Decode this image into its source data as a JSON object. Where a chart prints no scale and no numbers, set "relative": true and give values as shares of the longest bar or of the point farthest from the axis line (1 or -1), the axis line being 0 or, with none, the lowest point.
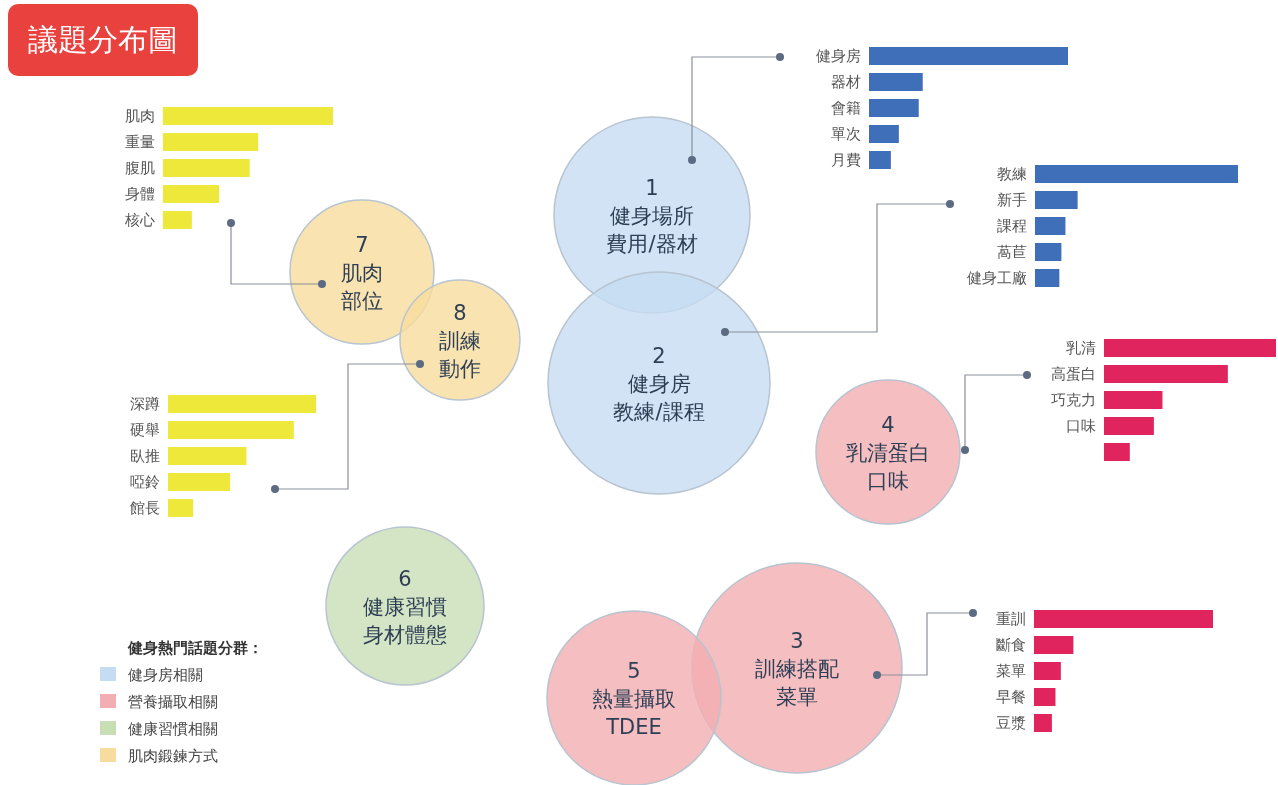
{
  "chart_data": [
    {
      "type": "other",
      "title": "議題分布圖",
      "legend_title": "健身熱門話題分群：",
      "legend": "bottom left",
      "series": [
        {
          "name": "健身房相關",
          "color": "#c5dcf2"
        },
        {
          "name": "營養攝取相關",
          "color": "#f2aeb2"
        },
        {
          "name": "健康習慣相關",
          "color": "#c8dfb5"
        },
        {
          "name": "肌肉鍛鍊方式",
          "color": "#f8dc9e"
        }
      ],
      "annotations": [
        "1",
        "健身場所",
        "費用/器材",
        "2",
        "健身房",
        "教練/課程",
        "3",
        "訓練搭配",
        "菜單",
        "4",
        "乳清蛋白",
        "口味",
        "5",
        "熱量攝取",
        "TDEE",
        "6",
        "健康習慣",
        "身材體態",
        "7",
        "肌肉",
        "部位",
        "8",
        "訓練",
        "動作"
      ]
    },
    {
      "type": "bar",
      "orientation": "horizontal",
      "relative": true,
      "color": "#3f6fb8",
      "categories": [
        "健身房",
        "器材",
        "會籍",
        "單次",
        "月費"
      ],
      "values": [
        1,
        0.27,
        0.25,
        0.15,
        0.11
      ]
    },
    {
      "type": "bar",
      "orientation": "horizontal",
      "relative": true,
      "color": "#3f6fb8",
      "categories": [
        "教練",
        "新手",
        "課程",
        "萵苣",
        "健身工廠"
      ],
      "values": [
        1,
        0.21,
        0.15,
        0.13,
        0.12
      ]
    },
    {
      "type": "bar",
      "orientation": "horizontal",
      "relative": true,
      "color": "#e0245e",
      "categories": [
        "乳清",
        "高蛋白",
        "巧克力",
        "口味",
        null
      ],
      "values": [
        1,
        0.72,
        0.34,
        0.29,
        0.15
      ]
    },
    {
      "type": "bar",
      "orientation": "horizontal",
      "relative": true,
      "color": "#e0245e",
      "categories": [
        "重訓",
        "斷食",
        "菜單",
        "早餐",
        "豆漿"
      ],
      "values": [
        1,
        0.22,
        0.15,
        0.12,
        0.1
      ]
    },
    {
      "type": "bar",
      "orientation": "horizontal",
      "relative": true,
      "color": "#eee83a",
      "categories": [
        "肌肉",
        "重量",
        "腹肌",
        "身體",
        "核心"
      ],
      "values": [
        1,
        0.56,
        0.51,
        0.33,
        0.17
      ]
    },
    {
      "type": "bar",
      "orientation": "horizontal",
      "relative": true,
      "color": "#eee83a",
      "categories": [
        "深蹲",
        "硬舉",
        "臥推",
        "啞鈴",
        "館長"
      ],
      "values": [
        1,
        0.85,
        0.53,
        0.42,
        0.17
      ]
    }
  ]
}
